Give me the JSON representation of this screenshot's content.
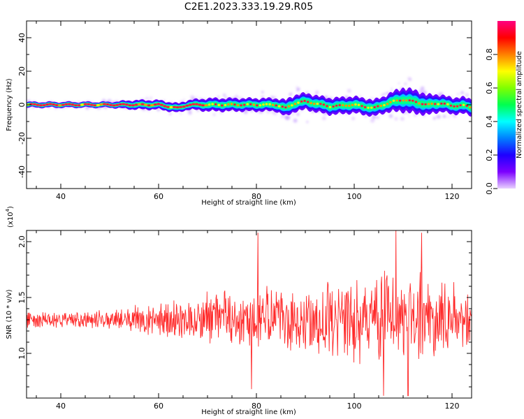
{
  "title": "C2E1.2023.333.19.29.R05",
  "chart_data": [
    {
      "type": "heatmap",
      "xlabel": "Height of straight line (km)",
      "ylabel": "Frequency (Hz)",
      "xlim": [
        33,
        124
      ],
      "ylim": [
        -50,
        50
      ],
      "xticks": [
        "40",
        "60",
        "80",
        "100",
        "120"
      ],
      "yticks": [
        "-40",
        "-20",
        "0",
        "20",
        "40"
      ],
      "ridge": {
        "x": [
          33,
          40,
          50,
          55,
          60,
          64,
          66,
          70,
          80,
          84,
          86,
          88,
          90,
          95,
          100,
          104,
          106,
          108,
          110,
          112,
          115,
          118,
          120,
          122,
          124
        ],
        "freq": [
          0,
          0,
          0,
          0,
          0,
          -2,
          0,
          0,
          0,
          0,
          -2,
          1,
          2,
          -1,
          0,
          -2,
          0,
          2,
          3,
          2,
          0,
          1,
          -1,
          0,
          -2
        ],
        "spread": [
          1,
          1,
          1,
          2,
          2,
          2,
          2,
          3,
          3,
          3,
          4,
          4,
          4,
          4,
          4,
          4,
          4,
          5,
          6,
          6,
          5,
          4,
          4,
          4,
          4
        ]
      },
      "colorbar": {
        "label": "Normalized spectral amplitude",
        "range": [
          0,
          1
        ],
        "ticks": [
          "0.0",
          "0.2",
          "0.4",
          "0.6",
          "0.8"
        ],
        "colors": [
          "#e9d2ff",
          "#7c00ff",
          "#1e00ff",
          "#0080ff",
          "#00ffff",
          "#00ff50",
          "#80ff00",
          "#ffff00",
          "#ff8000",
          "#ff0000",
          "#ff0080"
        ]
      }
    },
    {
      "type": "line",
      "xlabel": "Height of straight line (km)",
      "ylabel": "SNR (10 * v/v)",
      "yscale_label": "(x10",
      "yscale_exp": "4",
      "yscale_close": ")",
      "xlim": [
        33,
        124
      ],
      "ylim": [
        0.6,
        2.1
      ],
      "xticks": [
        "40",
        "60",
        "80",
        "100",
        "120"
      ],
      "yticks": [
        "1.0",
        "1.5",
        "2.0"
      ],
      "color": "#ff2a2a",
      "mean": 1.3,
      "amplitude_envelope": {
        "x": [
          33,
          40,
          50,
          55,
          60,
          70,
          80,
          90,
          100,
          110,
          120,
          124
        ],
        "amp": [
          0.08,
          0.07,
          0.08,
          0.12,
          0.15,
          0.22,
          0.28,
          0.3,
          0.35,
          0.42,
          0.3,
          0.25
        ]
      },
      "peaks": [
        {
          "x": 80.3,
          "y": 2.08
        },
        {
          "x": 108.5,
          "y": 2.1
        },
        {
          "x": 113.8,
          "y": 2.08
        },
        {
          "x": 79,
          "y": 0.68
        },
        {
          "x": 106,
          "y": 0.62
        },
        {
          "x": 111,
          "y": 0.62
        }
      ]
    }
  ]
}
